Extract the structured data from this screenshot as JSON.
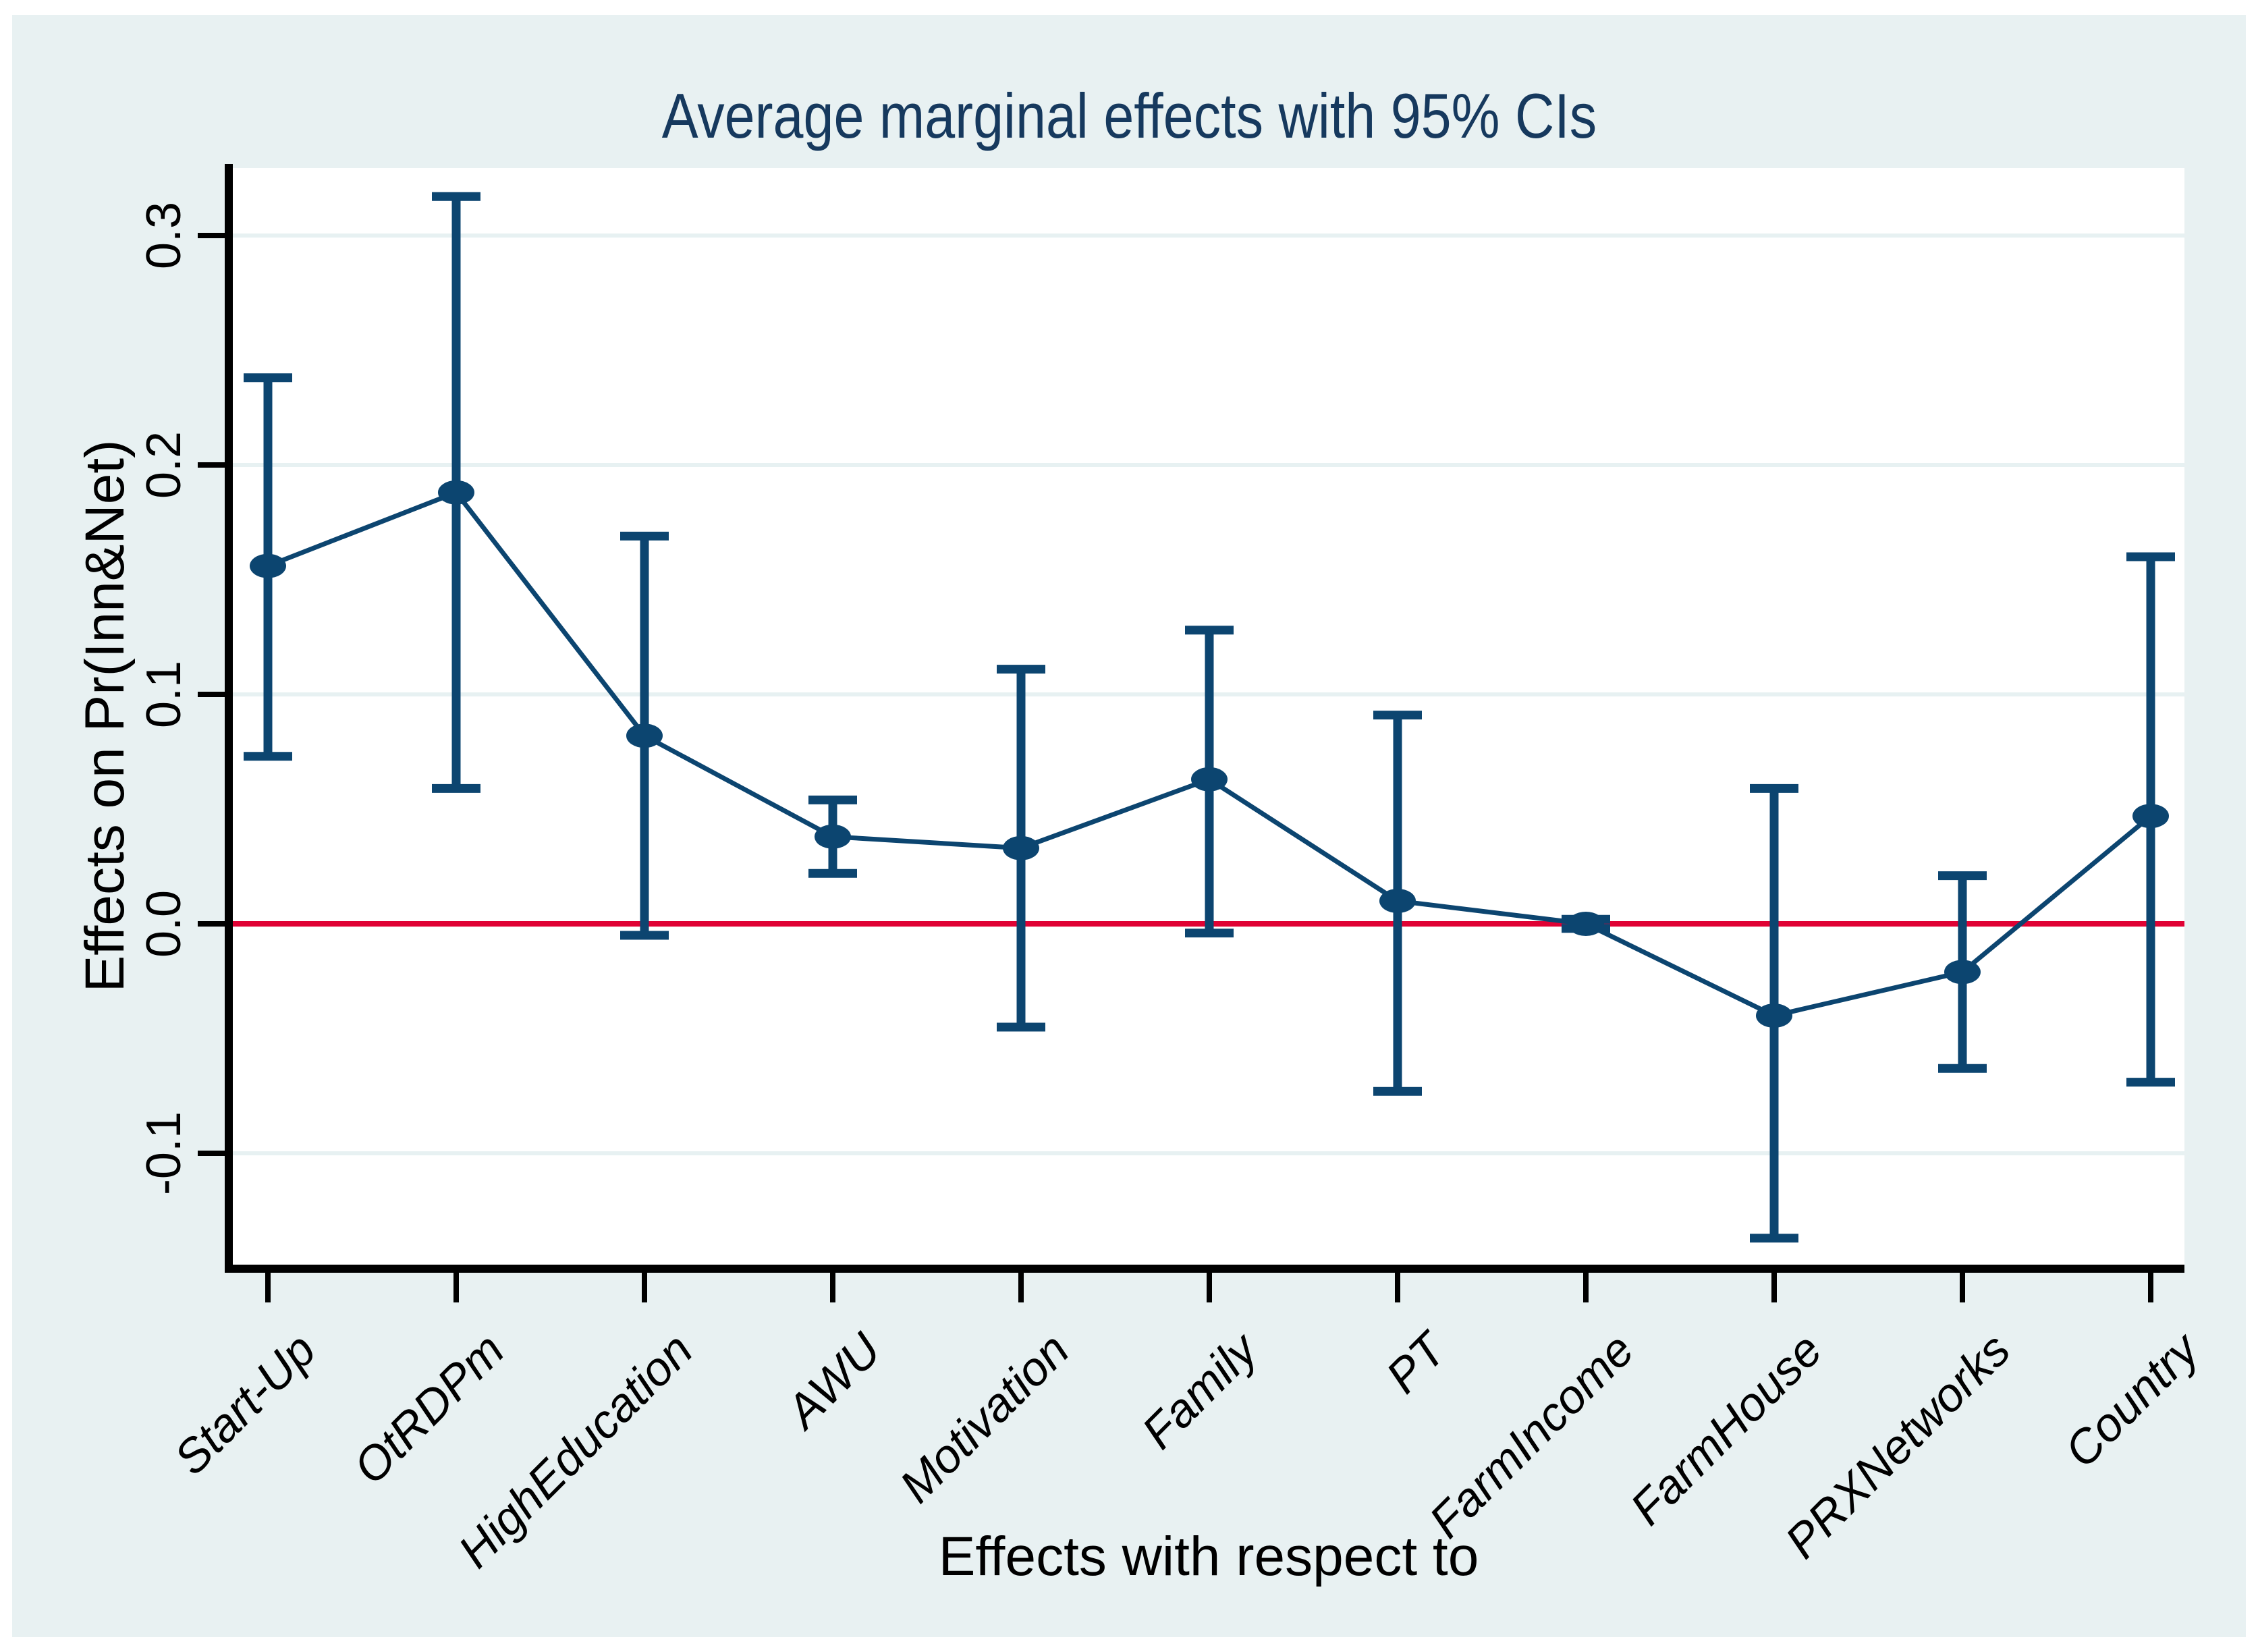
{
  "figure": {
    "title": "Average marginal effects with 95% CIs",
    "x_axis_title": "Effects with respect to",
    "y_axis_title": "Effects on Pr(Inn&Net)"
  },
  "colors": {
    "canvas_background": "#E8F1F2",
    "plot_background": "#FFFFFF",
    "series_navy": "#0C4570",
    "zero_line_red": "#E00234",
    "gridline": "#E7F1F2",
    "title_text": "#16395E",
    "axis_text": "#000000"
  },
  "chart_data": {
    "type": "line",
    "subtype": "marginsplot-with-error-bars",
    "title": "Average marginal effects with 95% CIs",
    "xlabel": "Effects with respect to",
    "ylabel": "Effects on Pr(Inn&Net)",
    "ci_level": "95%",
    "grid": true,
    "legend": false,
    "categories": [
      "Start-Up",
      "OtRDPm",
      "HighEducation",
      "AWU",
      "Motivation",
      "Family",
      "PT",
      "FarmIncome",
      "FarmHouse",
      "PRXNetworks",
      "Country"
    ],
    "series": [
      {
        "name": "Average marginal effect",
        "values": [
          0.156,
          0.188,
          0.082,
          0.038,
          0.033,
          0.063,
          0.01,
          0.0,
          -0.04,
          -0.021,
          0.047
        ],
        "ci_low": [
          0.073,
          0.059,
          -0.005,
          0.022,
          -0.045,
          -0.004,
          -0.073,
          -0.002,
          -0.137,
          -0.063,
          -0.069
        ],
        "ci_high": [
          0.238,
          0.317,
          0.169,
          0.054,
          0.111,
          0.128,
          0.091,
          0.002,
          0.059,
          0.021,
          0.16
        ]
      }
    ],
    "yticks": [
      0.3,
      0.2,
      0.1,
      0.0,
      -0.1
    ],
    "ytick_labels": [
      "0.3",
      "0.2",
      "0.1",
      "0.0",
      "-0.1"
    ],
    "ylim": [
      -0.149,
      0.329
    ],
    "zero_line": 0.0
  }
}
